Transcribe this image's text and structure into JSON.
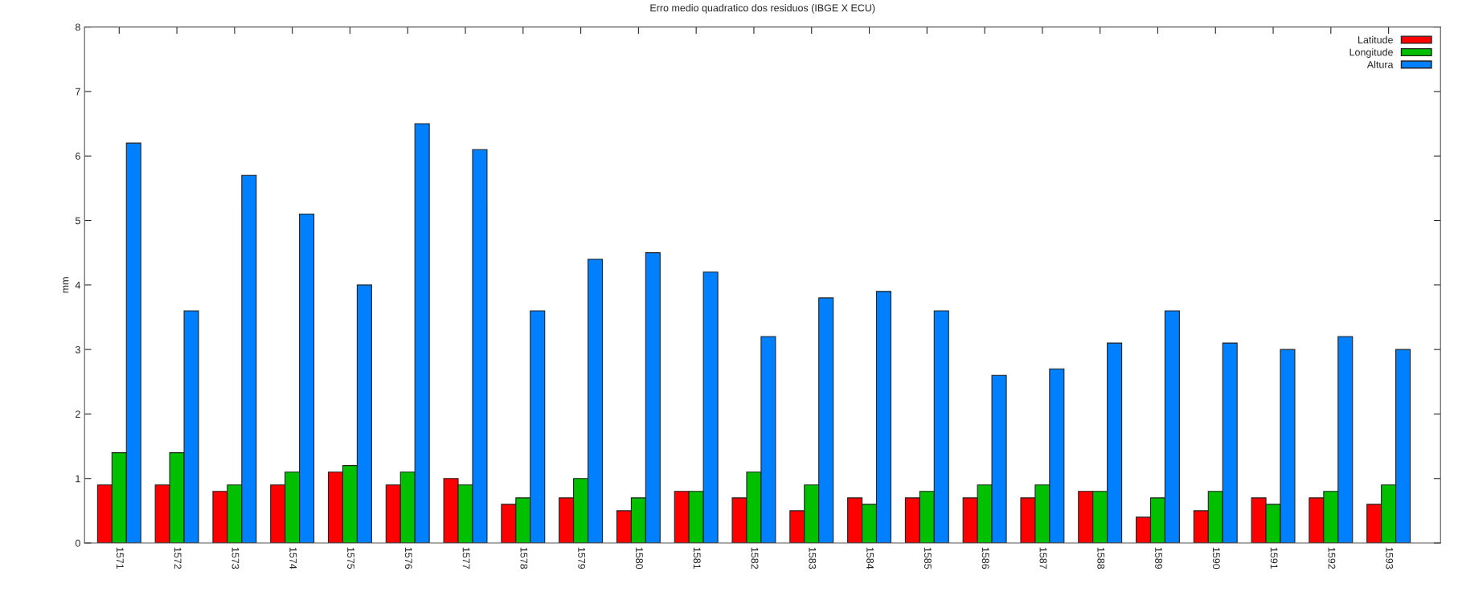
{
  "chart_data": {
    "type": "bar",
    "title": "Erro medio quadratico dos residuos (IBGE X ECU)",
    "ylabel": "mm",
    "categories": [
      "1571",
      "1572",
      "1573",
      "1574",
      "1575",
      "1576",
      "1577",
      "1578",
      "1579",
      "1580",
      "1581",
      "1582",
      "1583",
      "1584",
      "1585",
      "1586",
      "1587",
      "1588",
      "1589",
      "1590",
      "1591",
      "1592",
      "1593"
    ],
    "series": [
      {
        "name": "Latitude",
        "color": "#ff0000",
        "values": [
          0.9,
          0.9,
          0.8,
          0.9,
          1.1,
          0.9,
          1.0,
          0.6,
          0.7,
          0.5,
          0.8,
          0.7,
          0.5,
          0.7,
          0.7,
          0.7,
          0.7,
          0.8,
          0.4,
          0.5,
          0.7,
          0.7,
          0.6
        ]
      },
      {
        "name": "Longitude",
        "color": "#00c000",
        "values": [
          1.4,
          1.4,
          0.9,
          1.1,
          1.2,
          1.1,
          0.9,
          0.7,
          1.0,
          0.7,
          0.8,
          1.1,
          0.9,
          0.6,
          0.8,
          0.9,
          0.9,
          0.8,
          0.7,
          0.8,
          0.6,
          0.8,
          0.9
        ]
      },
      {
        "name": "Altura",
        "color": "#0080ff",
        "values": [
          6.2,
          3.6,
          5.7,
          5.1,
          4.0,
          6.5,
          6.1,
          3.6,
          4.4,
          4.5,
          4.2,
          3.2,
          3.8,
          3.9,
          3.6,
          2.6,
          2.7,
          3.1,
          3.6,
          3.1,
          3.0,
          3.2,
          3.0
        ]
      }
    ],
    "ylim": [
      0,
      8
    ],
    "yticks": [
      0,
      1,
      2,
      3,
      4,
      5,
      6,
      7,
      8
    ],
    "grid": false,
    "legend": "top right"
  }
}
